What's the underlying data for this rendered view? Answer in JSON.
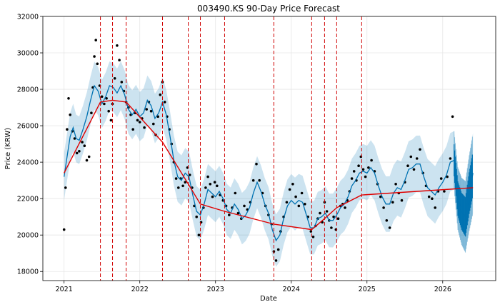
{
  "chart_data": {
    "type": "line",
    "title": "003490.KS 90-Day Price Forecast",
    "xlabel": "Date",
    "ylabel": "Price (KRW)",
    "x_range": [
      2020.72,
      2026.7
    ],
    "ylim": [
      17500,
      32000
    ],
    "x_ticks": [
      {
        "value": 2021,
        "label": "2021"
      },
      {
        "value": 2022,
        "label": "2022"
      },
      {
        "value": 2023,
        "label": "2023"
      },
      {
        "value": 2024,
        "label": "2024"
      },
      {
        "value": 2025,
        "label": "2025"
      },
      {
        "value": 2026,
        "label": "2026"
      }
    ],
    "y_ticks": [
      {
        "value": 18000,
        "label": "18000"
      },
      {
        "value": 20000,
        "label": "20000"
      },
      {
        "value": 22000,
        "label": "22000"
      },
      {
        "value": 24000,
        "label": "24000"
      },
      {
        "value": 26000,
        "label": "26000"
      },
      {
        "value": 28000,
        "label": "28000"
      },
      {
        "value": 30000,
        "label": "30000"
      },
      {
        "value": 32000,
        "label": "32000"
      }
    ],
    "grid": true,
    "history_end": 2026.15,
    "forecast_end": 2026.4,
    "colors": {
      "observed": "#000000",
      "forecast": "#0072B2",
      "interval": "#0072B2",
      "trend": "#e00000",
      "changepoint": "#d00000"
    },
    "observed": [
      [
        2021.0,
        20300
      ],
      [
        2021.02,
        22600
      ],
      [
        2021.04,
        25800
      ],
      [
        2021.06,
        27500
      ],
      [
        2021.08,
        26600
      ],
      [
        2021.11,
        25700
      ],
      [
        2021.14,
        25300
      ],
      [
        2021.17,
        24500
      ],
      [
        2021.2,
        24600
      ],
      [
        2021.24,
        25100
      ],
      [
        2021.27,
        24900
      ],
      [
        2021.3,
        24100
      ],
      [
        2021.33,
        24300
      ],
      [
        2021.36,
        26700
      ],
      [
        2021.38,
        28100
      ],
      [
        2021.4,
        29800
      ],
      [
        2021.42,
        30700
      ],
      [
        2021.44,
        29400
      ],
      [
        2021.47,
        28200
      ],
      [
        2021.5,
        27600
      ],
      [
        2021.53,
        27200
      ],
      [
        2021.56,
        27500
      ],
      [
        2021.59,
        26800
      ],
      [
        2021.62,
        26300
      ],
      [
        2021.64,
        27200
      ],
      [
        2021.67,
        28600
      ],
      [
        2021.7,
        30400
      ],
      [
        2021.73,
        29600
      ],
      [
        2021.76,
        28400
      ],
      [
        2021.79,
        27900
      ],
      [
        2021.82,
        27300
      ],
      [
        2021.85,
        27000
      ],
      [
        2021.88,
        26600
      ],
      [
        2021.91,
        25800
      ],
      [
        2021.94,
        26700
      ],
      [
        2021.97,
        26300
      ],
      [
        2022.0,
        26200
      ],
      [
        2022.03,
        26400
      ],
      [
        2022.06,
        25900
      ],
      [
        2022.09,
        26900
      ],
      [
        2022.12,
        27300
      ],
      [
        2022.15,
        26800
      ],
      [
        2022.18,
        26100
      ],
      [
        2022.21,
        25500
      ],
      [
        2022.24,
        26500
      ],
      [
        2022.27,
        27700
      ],
      [
        2022.3,
        28400
      ],
      [
        2022.33,
        27300
      ],
      [
        2022.36,
        26500
      ],
      [
        2022.39,
        25800
      ],
      [
        2022.42,
        25000
      ],
      [
        2022.45,
        24000
      ],
      [
        2022.48,
        23100
      ],
      [
        2022.51,
        22600
      ],
      [
        2022.54,
        23100
      ],
      [
        2022.57,
        22700
      ],
      [
        2022.6,
        22900
      ],
      [
        2022.63,
        23700
      ],
      [
        2022.66,
        23300
      ],
      [
        2022.69,
        22600
      ],
      [
        2022.72,
        21600
      ],
      [
        2022.75,
        21000
      ],
      [
        2022.78,
        20000
      ],
      [
        2022.81,
        20700
      ],
      [
        2022.84,
        21500
      ],
      [
        2022.87,
        22600
      ],
      [
        2022.9,
        23200
      ],
      [
        2022.93,
        22800
      ],
      [
        2022.96,
        22100
      ],
      [
        2022.99,
        22900
      ],
      [
        2023.02,
        22700
      ],
      [
        2023.06,
        22200
      ],
      [
        2023.1,
        21900
      ],
      [
        2023.14,
        21600
      ],
      [
        2023.18,
        21100
      ],
      [
        2023.22,
        21500
      ],
      [
        2023.26,
        22300
      ],
      [
        2023.3,
        21200
      ],
      [
        2023.34,
        20900
      ],
      [
        2023.38,
        21600
      ],
      [
        2023.42,
        21400
      ],
      [
        2023.46,
        21800
      ],
      [
        2023.5,
        23000
      ],
      [
        2023.54,
        23900
      ],
      [
        2023.58,
        23000
      ],
      [
        2023.62,
        22300
      ],
      [
        2023.66,
        21600
      ],
      [
        2023.7,
        21100
      ],
      [
        2023.74,
        20600
      ],
      [
        2023.77,
        19100
      ],
      [
        2023.8,
        18600
      ],
      [
        2023.83,
        19200
      ],
      [
        2023.86,
        20200
      ],
      [
        2023.9,
        21000
      ],
      [
        2023.94,
        21800
      ],
      [
        2023.98,
        22500
      ],
      [
        2024.02,
        22800
      ],
      [
        2024.06,
        22100
      ],
      [
        2024.1,
        21600
      ],
      [
        2024.14,
        22300
      ],
      [
        2024.18,
        21700
      ],
      [
        2024.22,
        21000
      ],
      [
        2024.26,
        20200
      ],
      [
        2024.29,
        19900
      ],
      [
        2024.32,
        20500
      ],
      [
        2024.35,
        20900
      ],
      [
        2024.38,
        21200
      ],
      [
        2024.41,
        20700
      ],
      [
        2024.44,
        21800
      ],
      [
        2024.47,
        21300
      ],
      [
        2024.5,
        20800
      ],
      [
        2024.53,
        20400
      ],
      [
        2024.56,
        21000
      ],
      [
        2024.59,
        20300
      ],
      [
        2024.62,
        20900
      ],
      [
        2024.65,
        21600
      ],
      [
        2024.68,
        21700
      ],
      [
        2024.71,
        21500
      ],
      [
        2024.74,
        21900
      ],
      [
        2024.77,
        22400
      ],
      [
        2024.8,
        23100
      ],
      [
        2024.83,
        23500
      ],
      [
        2024.86,
        23000
      ],
      [
        2024.89,
        23800
      ],
      [
        2024.92,
        24300
      ],
      [
        2024.95,
        23600
      ],
      [
        2024.98,
        23200
      ],
      [
        2025.02,
        23700
      ],
      [
        2025.06,
        24100
      ],
      [
        2025.1,
        23500
      ],
      [
        2025.14,
        22800
      ],
      [
        2025.18,
        22100
      ],
      [
        2025.22,
        21500
      ],
      [
        2025.26,
        20800
      ],
      [
        2025.3,
        20400
      ],
      [
        2025.34,
        21800
      ],
      [
        2025.38,
        22800
      ],
      [
        2025.42,
        22300
      ],
      [
        2025.46,
        21900
      ],
      [
        2025.5,
        22900
      ],
      [
        2025.54,
        23800
      ],
      [
        2025.58,
        24300
      ],
      [
        2025.62,
        23600
      ],
      [
        2025.66,
        24200
      ],
      [
        2025.7,
        24700
      ],
      [
        2025.74,
        23400
      ],
      [
        2025.78,
        22700
      ],
      [
        2025.82,
        22100
      ],
      [
        2025.86,
        22000
      ],
      [
        2025.9,
        21500
      ],
      [
        2025.94,
        22400
      ],
      [
        2025.98,
        23100
      ],
      [
        2026.02,
        22400
      ],
      [
        2026.06,
        23200
      ],
      [
        2026.1,
        24200
      ],
      [
        2026.13,
        26500
      ]
    ],
    "forecast": [
      [
        2021.0,
        23200
      ],
      [
        2021.04,
        24300
      ],
      [
        2021.08,
        25400
      ],
      [
        2021.12,
        25900
      ],
      [
        2021.16,
        25300
      ],
      [
        2021.2,
        25200
      ],
      [
        2021.25,
        25800
      ],
      [
        2021.3,
        26500
      ],
      [
        2021.35,
        27400
      ],
      [
        2021.4,
        28200
      ],
      [
        2021.45,
        27900
      ],
      [
        2021.5,
        27200
      ],
      [
        2021.55,
        27600
      ],
      [
        2021.6,
        28200
      ],
      [
        2021.65,
        28100
      ],
      [
        2021.7,
        27800
      ],
      [
        2021.75,
        28200
      ],
      [
        2021.8,
        27700
      ],
      [
        2021.85,
        26900
      ],
      [
        2021.9,
        26600
      ],
      [
        2021.95,
        26900
      ],
      [
        2022.0,
        26500
      ],
      [
        2022.05,
        26700
      ],
      [
        2022.1,
        27400
      ],
      [
        2022.15,
        27100
      ],
      [
        2022.2,
        26400
      ],
      [
        2022.25,
        26700
      ],
      [
        2022.3,
        27300
      ],
      [
        2022.35,
        26600
      ],
      [
        2022.4,
        25400
      ],
      [
        2022.45,
        24100
      ],
      [
        2022.5,
        23200
      ],
      [
        2022.55,
        23000
      ],
      [
        2022.6,
        23400
      ],
      [
        2022.65,
        23200
      ],
      [
        2022.7,
        22200
      ],
      [
        2022.75,
        21300
      ],
      [
        2022.8,
        21100
      ],
      [
        2022.85,
        21700
      ],
      [
        2022.9,
        22500
      ],
      [
        2022.95,
        22300
      ],
      [
        2023.0,
        22100
      ],
      [
        2023.05,
        22400
      ],
      [
        2023.1,
        22000
      ],
      [
        2023.15,
        21400
      ],
      [
        2023.2,
        21200
      ],
      [
        2023.25,
        21700
      ],
      [
        2023.3,
        21400
      ],
      [
        2023.35,
        20900
      ],
      [
        2023.4,
        21100
      ],
      [
        2023.45,
        21500
      ],
      [
        2023.5,
        22300
      ],
      [
        2023.55,
        22900
      ],
      [
        2023.6,
        22400
      ],
      [
        2023.65,
        21700
      ],
      [
        2023.7,
        21200
      ],
      [
        2023.75,
        20300
      ],
      [
        2023.8,
        19700
      ],
      [
        2023.85,
        20000
      ],
      [
        2023.9,
        20900
      ],
      [
        2023.95,
        21600
      ],
      [
        2024.0,
        21900
      ],
      [
        2024.05,
        21700
      ],
      [
        2024.1,
        21900
      ],
      [
        2024.15,
        21800
      ],
      [
        2024.2,
        21100
      ],
      [
        2024.25,
        20400
      ],
      [
        2024.3,
        20400
      ],
      [
        2024.35,
        20900
      ],
      [
        2024.4,
        21000
      ],
      [
        2024.45,
        21200
      ],
      [
        2024.5,
        20800
      ],
      [
        2024.55,
        20800
      ],
      [
        2024.6,
        21100
      ],
      [
        2024.65,
        21500
      ],
      [
        2024.7,
        21700
      ],
      [
        2024.75,
        22100
      ],
      [
        2024.8,
        22700
      ],
      [
        2024.85,
        23000
      ],
      [
        2024.9,
        23400
      ],
      [
        2024.95,
        23500
      ],
      [
        2025.0,
        23400
      ],
      [
        2025.05,
        23700
      ],
      [
        2025.1,
        23400
      ],
      [
        2025.15,
        22700
      ],
      [
        2025.2,
        22100
      ],
      [
        2025.25,
        21700
      ],
      [
        2025.3,
        21700
      ],
      [
        2025.35,
        22300
      ],
      [
        2025.4,
        22600
      ],
      [
        2025.45,
        22500
      ],
      [
        2025.5,
        23000
      ],
      [
        2025.55,
        23600
      ],
      [
        2025.6,
        23700
      ],
      [
        2025.65,
        23900
      ],
      [
        2025.7,
        23900
      ],
      [
        2025.75,
        23200
      ],
      [
        2025.8,
        22600
      ],
      [
        2025.85,
        22400
      ],
      [
        2025.9,
        22200
      ],
      [
        2025.95,
        22600
      ],
      [
        2026.0,
        22900
      ],
      [
        2026.05,
        23300
      ],
      [
        2026.1,
        24000
      ],
      [
        2026.15,
        24100
      ],
      [
        2026.2,
        22000
      ],
      [
        2026.25,
        21300
      ],
      [
        2026.3,
        21000
      ],
      [
        2026.35,
        22300
      ],
      [
        2026.4,
        23400
      ]
    ],
    "interval_width": [
      [
        2021.0,
        1300
      ],
      [
        2023.0,
        1400
      ],
      [
        2025.0,
        1500
      ],
      [
        2026.15,
        1600
      ],
      [
        2026.4,
        2200
      ]
    ],
    "trend": [
      [
        2021.0,
        23400
      ],
      [
        2021.48,
        27300
      ],
      [
        2021.64,
        27400
      ],
      [
        2021.82,
        27300
      ],
      [
        2022.3,
        25100
      ],
      [
        2022.64,
        22800
      ],
      [
        2022.8,
        21700
      ],
      [
        2023.12,
        21300
      ],
      [
        2023.77,
        20600
      ],
      [
        2024.27,
        20300
      ],
      [
        2024.44,
        20900
      ],
      [
        2024.6,
        21500
      ],
      [
        2024.93,
        22200
      ],
      [
        2026.4,
        22600
      ]
    ],
    "changepoints": [
      2021.48,
      2021.64,
      2021.82,
      2022.3,
      2022.64,
      2022.8,
      2023.12,
      2023.77,
      2024.27,
      2024.44,
      2024.6,
      2024.93
    ]
  }
}
